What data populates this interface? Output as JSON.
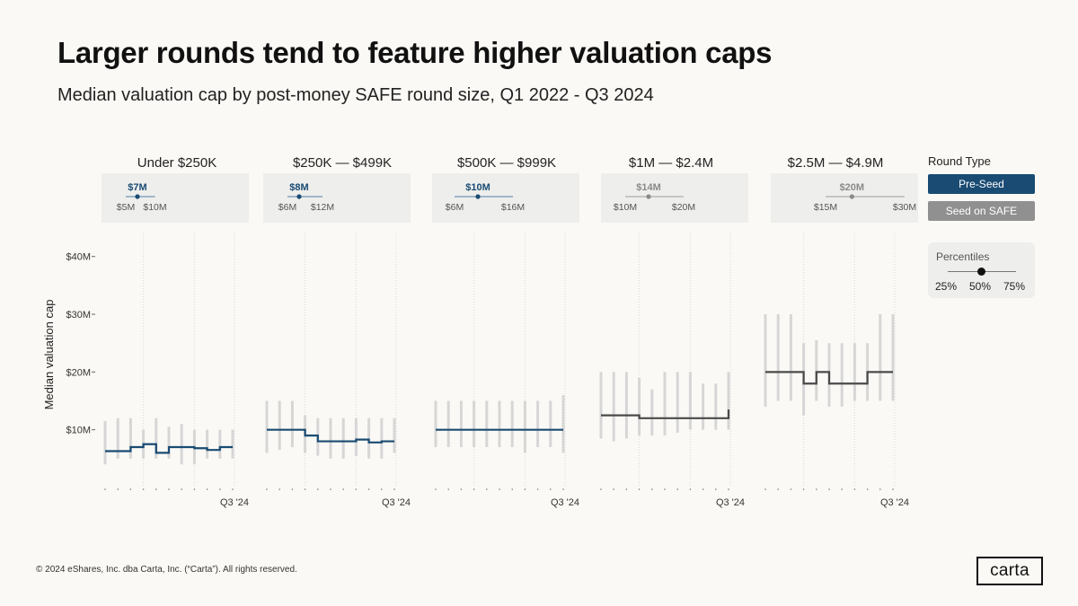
{
  "title": "Larger rounds tend to feature higher valuation caps",
  "subtitle": "Median valuation cap by post-money SAFE round size, Q1 2022 - Q3 2024",
  "legend": {
    "title": "Round Type",
    "items": [
      {
        "label": "Pre-Seed",
        "color": "#1a4b73"
      },
      {
        "label": "Seed on SAFE",
        "color": "#909090"
      }
    ]
  },
  "percentiles": {
    "title": "Percentiles",
    "labels": [
      "25%",
      "50%",
      "75%"
    ]
  },
  "footer": "© 2024 eShares, Inc. dba Carta, Inc. (“Carta”). All rights reserved.",
  "logo": "carta",
  "chart_data": {
    "type": "line",
    "ylabel": "Median valuation cap",
    "ylim": [
      0,
      44
    ],
    "y_ticks": [
      {
        "value": 10,
        "label": "$10M"
      },
      {
        "value": 20,
        "label": "$20M"
      },
      {
        "value": 30,
        "label": "$30M"
      },
      {
        "value": 40,
        "label": "$40M"
      }
    ],
    "x_end_label": "Q3 '24",
    "colors": {
      "preseed": "#1a4b73",
      "seed": "#4a4a4a",
      "band": "#d6d6d6",
      "summary_bg": "#eeeeec"
    },
    "panels": [
      {
        "name": "Under $250K",
        "round_type": "Pre-Seed",
        "summary": {
          "median_label": "$7M",
          "p25_label": "$5M",
          "p75_label": "$10M",
          "p25": 5,
          "median": 7,
          "p75": 10
        },
        "median": [
          6.3,
          6.3,
          7,
          7.5,
          6,
          7,
          7,
          6.8,
          6.5,
          7,
          7
        ],
        "p25": [
          4,
          5,
          5,
          5,
          5,
          5,
          4,
          4,
          5,
          5,
          5
        ],
        "p75": [
          11.5,
          12,
          12,
          10,
          12,
          10.5,
          11,
          10,
          10,
          10,
          10
        ]
      },
      {
        "name": "$250K — $499K",
        "round_type": "Pre-Seed",
        "summary": {
          "median_label": "$8M",
          "p25_label": "$6M",
          "p75_label": "$12M",
          "p25": 6,
          "median": 8,
          "p75": 12
        },
        "median": [
          10,
          10,
          10,
          9,
          8,
          8,
          8,
          8.3,
          7.8,
          8,
          8
        ],
        "p25": [
          6,
          6.5,
          7,
          6,
          5.5,
          5,
          5,
          5.5,
          5,
          5,
          6
        ],
        "p75": [
          15,
          15,
          15,
          12.5,
          12,
          12,
          12,
          12,
          12,
          12,
          12
        ]
      },
      {
        "name": "$500K — $999K",
        "round_type": "Pre-Seed",
        "summary": {
          "median_label": "$10M",
          "p25_label": "$6M",
          "p75_label": "$16M",
          "p25": 6,
          "median": 10,
          "p75": 16
        },
        "median": [
          10,
          10,
          10,
          10,
          10,
          10,
          10,
          10,
          10,
          10,
          10
        ],
        "p25": [
          7,
          7,
          7,
          7,
          7,
          7,
          7,
          6,
          7,
          7,
          6
        ],
        "p75": [
          15,
          15,
          15,
          15,
          15,
          15,
          15,
          15,
          15,
          15,
          16
        ]
      },
      {
        "name": "$1M — $2.4M",
        "round_type": "Seed on SAFE",
        "summary": {
          "median_label": "$14M",
          "p25_label": "$10M",
          "p75_label": "$20M",
          "p25": 10,
          "median": 14,
          "p75": 20
        },
        "median": [
          12.5,
          12.5,
          12.5,
          12,
          12,
          12,
          12,
          12,
          12,
          12,
          13.5
        ],
        "p25": [
          8.5,
          8,
          8.5,
          9,
          9,
          9,
          9.5,
          10,
          10,
          10,
          10
        ],
        "p75": [
          20,
          20,
          20,
          19,
          17,
          20,
          20,
          20,
          18,
          18,
          20
        ]
      },
      {
        "name": "$2.5M — $4.9M",
        "round_type": "Seed on SAFE",
        "summary": {
          "median_label": "$20M",
          "p25_label": "$15M",
          "p75_label": "$30M",
          "p25": 15,
          "median": 20,
          "p75": 30
        },
        "median": [
          20,
          20,
          20,
          18,
          20,
          18,
          18,
          18,
          20,
          20,
          20
        ],
        "p25": [
          14,
          15,
          15,
          12.5,
          15,
          14,
          14,
          15,
          15,
          15,
          15
        ],
        "p75": [
          30,
          30,
          30,
          25,
          25.5,
          25,
          25,
          25,
          25,
          30,
          30
        ]
      }
    ]
  }
}
